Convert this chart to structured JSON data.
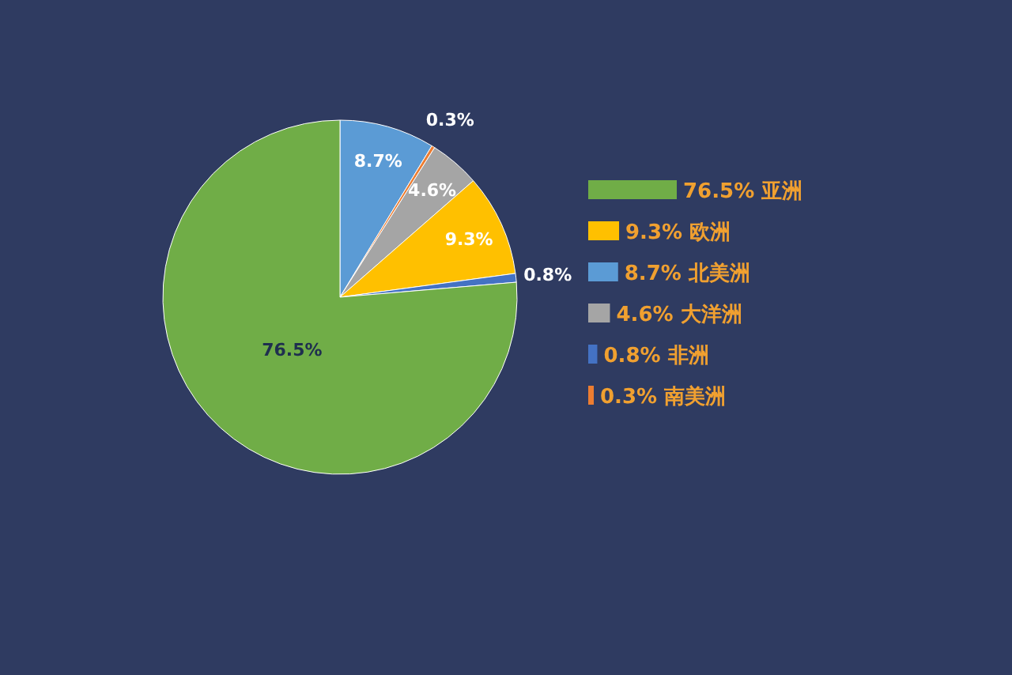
{
  "chart_data": {
    "type": "pie",
    "categories": [
      "北美洲",
      "南美洲",
      "大洋洲",
      "欧洲",
      "非洲",
      "亚洲"
    ],
    "values": [
      8.7,
      0.3,
      4.6,
      9.3,
      0.8,
      76.5
    ],
    "colors": [
      "#5b9bd5",
      "#ed7d31",
      "#a5a5a5",
      "#ffc000",
      "#4472c4",
      "#70ad47"
    ],
    "value_labels": [
      "8.7%",
      "0.3%",
      "4.6%",
      "9.3%",
      "0.8%",
      "76.5%"
    ],
    "legend": "right"
  }
}
